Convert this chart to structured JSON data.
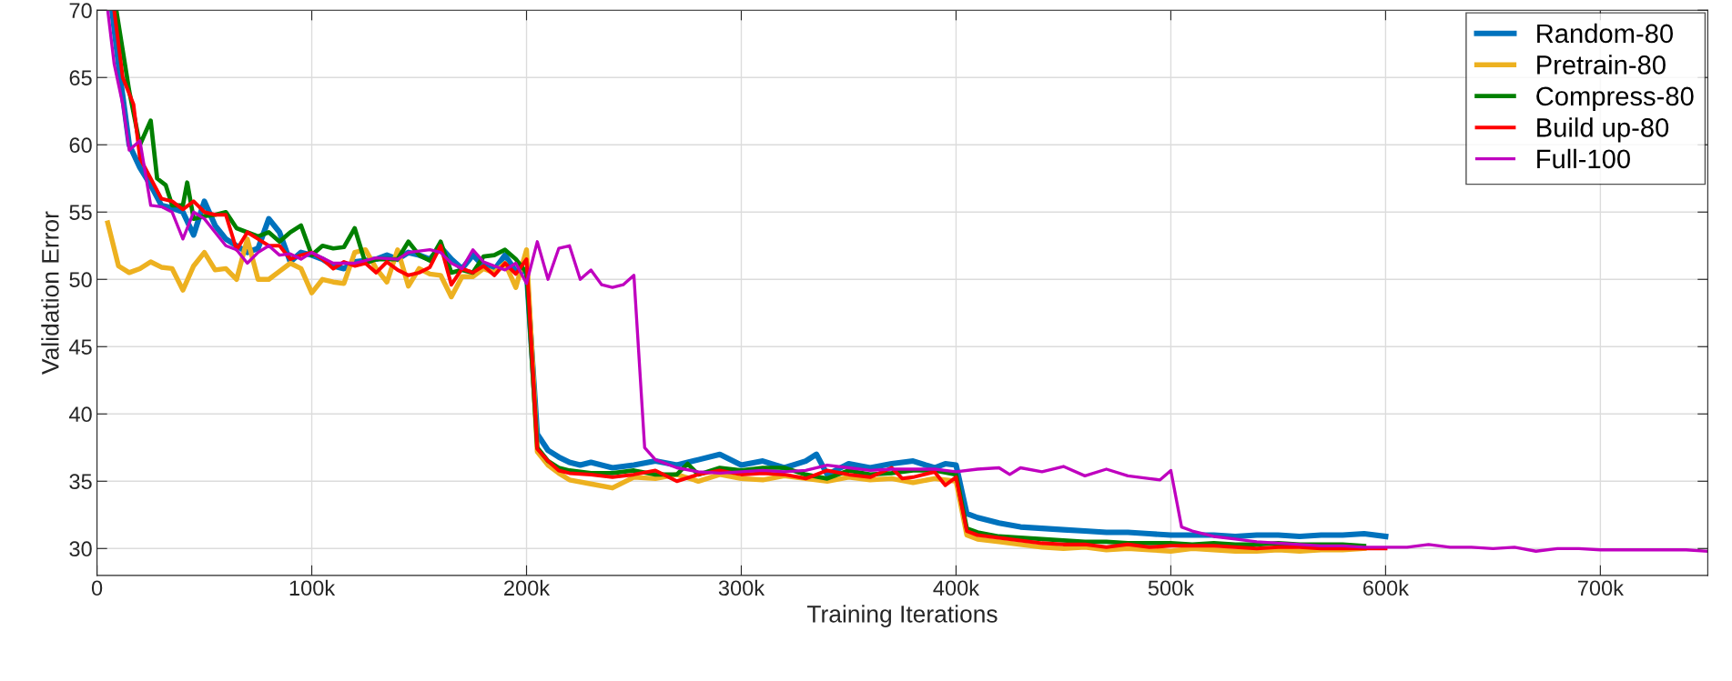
{
  "chart_data": {
    "type": "line",
    "xlabel": "Training Iterations",
    "ylabel": "Validation Error",
    "xlim": [
      0,
      750000
    ],
    "ylim": [
      28,
      70
    ],
    "xticks": [
      {
        "value": 0,
        "label": "0"
      },
      {
        "value": 100000,
        "label": "100k"
      },
      {
        "value": 200000,
        "label": "200k"
      },
      {
        "value": 300000,
        "label": "300k"
      },
      {
        "value": 400000,
        "label": "400k"
      },
      {
        "value": 500000,
        "label": "500k"
      },
      {
        "value": 600000,
        "label": "600k"
      },
      {
        "value": 700000,
        "label": "700k"
      }
    ],
    "yticks": [
      30,
      35,
      40,
      45,
      50,
      55,
      60,
      65,
      70
    ],
    "grid": true,
    "legend": "top right",
    "line_style": "solid",
    "marker": "none",
    "series": [
      {
        "name": "Random-80",
        "color": "#0072bd",
        "x": [
          7000,
          10000,
          15000,
          20000,
          25000,
          30000,
          35000,
          40000,
          45000,
          50000,
          55000,
          60000,
          65000,
          70000,
          75000,
          80000,
          85000,
          90000,
          95000,
          100000,
          105000,
          110000,
          115000,
          120000,
          125000,
          130000,
          135000,
          140000,
          145000,
          150000,
          155000,
          160000,
          165000,
          170000,
          175000,
          180000,
          185000,
          190000,
          195000,
          200000,
          205000,
          210000,
          215000,
          220000,
          225000,
          230000,
          240000,
          250000,
          260000,
          270000,
          280000,
          290000,
          300000,
          310000,
          320000,
          330000,
          335000,
          340000,
          350000,
          360000,
          370000,
          380000,
          390000,
          395000,
          400000,
          405000,
          410000,
          420000,
          430000,
          440000,
          450000,
          460000,
          470000,
          480000,
          490000,
          500000,
          510000,
          520000,
          530000,
          540000,
          550000,
          560000,
          570000,
          580000,
          590000,
          600000
        ],
        "values": [
          70,
          66,
          60,
          58.3,
          57,
          55.5,
          55.3,
          55,
          53.3,
          55.8,
          54,
          53,
          52.5,
          52,
          52.3,
          54.5,
          53.5,
          51.3,
          52,
          51.8,
          51.5,
          51,
          50.8,
          51.3,
          51.4,
          51.5,
          51.8,
          51.5,
          52,
          51.8,
          51.5,
          52.4,
          51.5,
          50.8,
          51.8,
          51,
          50.7,
          51.8,
          50.6,
          50.6,
          38.5,
          37.3,
          36.8,
          36.4,
          36.2,
          36.4,
          36,
          36.2,
          36.5,
          36.2,
          36.6,
          37,
          36.2,
          36.5,
          36,
          36.5,
          37,
          35.5,
          36.3,
          36,
          36.3,
          36.5,
          36,
          36.3,
          36.2,
          32.6,
          32.3,
          31.9,
          31.6,
          31.5,
          31.4,
          31.3,
          31.2,
          31.2,
          31.1,
          31,
          31,
          31,
          30.9,
          31,
          31,
          30.9,
          31,
          31,
          31.1,
          30.9
        ]
      },
      {
        "name": "Pretrain-80",
        "color": "#edb120",
        "x": [
          5000,
          10000,
          15000,
          20000,
          25000,
          30000,
          35000,
          40000,
          45000,
          50000,
          55000,
          60000,
          65000,
          70000,
          75000,
          80000,
          85000,
          90000,
          95000,
          100000,
          105000,
          110000,
          115000,
          120000,
          125000,
          130000,
          135000,
          140000,
          145000,
          150000,
          155000,
          160000,
          165000,
          170000,
          175000,
          180000,
          185000,
          190000,
          195000,
          200000,
          205000,
          210000,
          215000,
          220000,
          230000,
          240000,
          250000,
          260000,
          270000,
          280000,
          290000,
          300000,
          310000,
          320000,
          330000,
          340000,
          350000,
          360000,
          370000,
          380000,
          390000,
          400000,
          405000,
          410000,
          420000,
          430000,
          440000,
          450000,
          460000,
          470000,
          480000,
          490000,
          500000,
          510000,
          520000,
          530000,
          540000,
          550000,
          560000,
          570000,
          580000,
          590000
        ],
        "values": [
          54.2,
          51,
          50.5,
          50.8,
          51.3,
          50.9,
          50.8,
          49.2,
          51,
          52,
          50.7,
          50.8,
          50,
          53,
          50,
          50,
          50.6,
          51.2,
          50.8,
          49,
          50,
          49.8,
          49.7,
          52,
          52.2,
          50.8,
          49.8,
          52.2,
          49.5,
          50.8,
          50.4,
          50.3,
          48.7,
          50.2,
          50.2,
          50.8,
          50.5,
          51.2,
          49.4,
          52.2,
          37.2,
          36.2,
          35.6,
          35.1,
          34.8,
          34.5,
          35.3,
          35.2,
          35.5,
          35,
          35.5,
          35.2,
          35.1,
          35.4,
          35.2,
          35,
          35.3,
          35.1,
          35.2,
          34.9,
          35.2,
          35,
          31,
          30.7,
          30.5,
          30.3,
          30.1,
          30,
          30.1,
          29.9,
          30,
          29.9,
          29.8,
          30,
          29.9,
          29.8,
          29.8,
          29.9,
          29.8,
          29.9,
          29.9,
          30
        ]
      },
      {
        "name": "Compress-80",
        "color": "#008000",
        "x": [
          9000,
          12000,
          15000,
          20000,
          25000,
          28000,
          32000,
          35000,
          40000,
          42000,
          45000,
          50000,
          55000,
          60000,
          65000,
          70000,
          75000,
          80000,
          85000,
          90000,
          95000,
          100000,
          105000,
          110000,
          115000,
          120000,
          125000,
          130000,
          135000,
          140000,
          145000,
          150000,
          155000,
          160000,
          165000,
          170000,
          175000,
          180000,
          185000,
          190000,
          195000,
          200000,
          205000,
          210000,
          215000,
          220000,
          230000,
          240000,
          250000,
          260000,
          270000,
          275000,
          280000,
          290000,
          300000,
          310000,
          320000,
          330000,
          340000,
          350000,
          360000,
          370000,
          380000,
          390000,
          400000,
          405000,
          410000,
          420000,
          430000,
          440000,
          450000,
          460000,
          470000,
          480000,
          490000,
          500000,
          510000,
          520000,
          530000,
          540000,
          550000,
          560000,
          570000,
          580000,
          590000
        ],
        "values": [
          70,
          67,
          64,
          60,
          61.8,
          57.5,
          57,
          55.5,
          55.5,
          57.2,
          54.5,
          54.7,
          54.8,
          55,
          53.8,
          53.5,
          53.2,
          53.5,
          52.8,
          53.5,
          54,
          51.8,
          52.5,
          52.3,
          52.4,
          53.8,
          51.2,
          51.5,
          51.5,
          51.5,
          52.8,
          51.8,
          51.4,
          52.8,
          50.5,
          50.7,
          50.5,
          51.7,
          51.8,
          52.2,
          51.5,
          50.5,
          37.5,
          36.5,
          36,
          35.8,
          35.6,
          35.6,
          35.8,
          35.5,
          35.5,
          36.3,
          35.5,
          36,
          35.8,
          36,
          36,
          35.5,
          35.2,
          35.8,
          35.5,
          35.6,
          35.8,
          35.8,
          35.5,
          31.5,
          31.2,
          30.9,
          30.8,
          30.7,
          30.6,
          30.5,
          30.5,
          30.4,
          30.4,
          30.4,
          30.3,
          30.4,
          30.3,
          30.3,
          30.4,
          30.3,
          30.3,
          30.3,
          30.2
        ]
      },
      {
        "name": "Build up-80",
        "color": "#ff0000",
        "x": [
          8000,
          12000,
          17000,
          20000,
          25000,
          30000,
          35000,
          40000,
          45000,
          50000,
          55000,
          60000,
          65000,
          70000,
          75000,
          80000,
          85000,
          90000,
          95000,
          100000,
          105000,
          110000,
          115000,
          120000,
          125000,
          130000,
          135000,
          140000,
          145000,
          150000,
          155000,
          160000,
          165000,
          170000,
          175000,
          180000,
          185000,
          190000,
          195000,
          200000,
          205000,
          210000,
          215000,
          220000,
          230000,
          240000,
          250000,
          260000,
          270000,
          280000,
          290000,
          300000,
          310000,
          320000,
          330000,
          340000,
          350000,
          360000,
          370000,
          375000,
          380000,
          390000,
          395000,
          400000,
          405000,
          410000,
          420000,
          430000,
          440000,
          450000,
          460000,
          470000,
          480000,
          490000,
          500000,
          510000,
          520000,
          530000,
          540000,
          550000,
          560000,
          570000,
          580000,
          590000,
          600000
        ],
        "values": [
          70,
          65,
          63,
          59,
          57.5,
          56,
          55.8,
          55.2,
          55.8,
          55,
          54.8,
          54.8,
          52.2,
          53.5,
          53,
          52.5,
          52.5,
          51.5,
          51.8,
          52,
          51.5,
          50.8,
          51.3,
          51,
          51.2,
          50.5,
          51.3,
          50.7,
          50.3,
          50.5,
          50.9,
          52.5,
          49.6,
          50.8,
          50.5,
          51,
          50.3,
          51.2,
          50.4,
          51.5,
          37.4,
          36.5,
          35.8,
          35.6,
          35.5,
          35.3,
          35.5,
          35.8,
          35,
          35.5,
          35.8,
          35.5,
          35.6,
          35.5,
          35.2,
          35.8,
          35.5,
          35.3,
          36,
          35.2,
          35.3,
          35.7,
          34.7,
          35.3,
          31.3,
          31,
          30.8,
          30.6,
          30.4,
          30.3,
          30.3,
          30.1,
          30.3,
          30.1,
          30.2,
          30.2,
          30.2,
          30.1,
          30,
          30.1,
          30.1,
          30,
          30,
          30,
          30
        ]
      },
      {
        "name": "Full-100",
        "color": "#bf00bf",
        "x": [
          5000,
          8000,
          12000,
          15000,
          20000,
          25000,
          30000,
          35000,
          40000,
          45000,
          50000,
          55000,
          60000,
          65000,
          70000,
          75000,
          80000,
          85000,
          90000,
          95000,
          100000,
          110000,
          120000,
          130000,
          140000,
          145000,
          150000,
          155000,
          160000,
          165000,
          170000,
          175000,
          180000,
          185000,
          190000,
          195000,
          200000,
          205000,
          210000,
          215000,
          220000,
          225000,
          230000,
          235000,
          240000,
          245000,
          250000,
          255000,
          260000,
          270000,
          280000,
          290000,
          300000,
          310000,
          320000,
          330000,
          340000,
          350000,
          360000,
          370000,
          380000,
          390000,
          400000,
          410000,
          420000,
          425000,
          430000,
          440000,
          450000,
          460000,
          470000,
          480000,
          490000,
          495000,
          500000,
          505000,
          510000,
          520000,
          530000,
          540000,
          550000,
          560000,
          570000,
          580000,
          590000,
          600000,
          610000,
          620000,
          630000,
          640000,
          650000,
          660000,
          670000,
          680000,
          690000,
          700000,
          710000,
          720000,
          730000,
          740000,
          750000
        ],
        "values": [
          70,
          66,
          63,
          59.6,
          60.3,
          55.5,
          55.4,
          55,
          53,
          55,
          54.5,
          53.5,
          52.5,
          52.2,
          51.2,
          52,
          52.5,
          51.8,
          51.9,
          51.5,
          52,
          51.2,
          51.2,
          51.6,
          51.5,
          52,
          52.1,
          52.2,
          52,
          51.2,
          50.8,
          52.2,
          51.3,
          51,
          50.7,
          51.2,
          49.7,
          52.8,
          50,
          52.3,
          52.5,
          50,
          50.7,
          49.6,
          49.4,
          49.6,
          50.3,
          37.5,
          36.6,
          36,
          35.7,
          35.6,
          35.7,
          35.8,
          35.7,
          35.8,
          36.2,
          36,
          35.8,
          35.9,
          35.9,
          35.9,
          35.7,
          35.9,
          36,
          35.5,
          36,
          35.7,
          36.1,
          35.4,
          35.9,
          35.4,
          35.2,
          35.1,
          35.8,
          31.6,
          31.3,
          30.9,
          30.7,
          30.5,
          30.4,
          30.3,
          30.2,
          30.2,
          30.1,
          30.1,
          30.1,
          30.3,
          30.1,
          30.1,
          30,
          30.1,
          29.8,
          30,
          30,
          29.9,
          29.9,
          29.9,
          29.9,
          29.9,
          29.8
        ]
      }
    ]
  }
}
